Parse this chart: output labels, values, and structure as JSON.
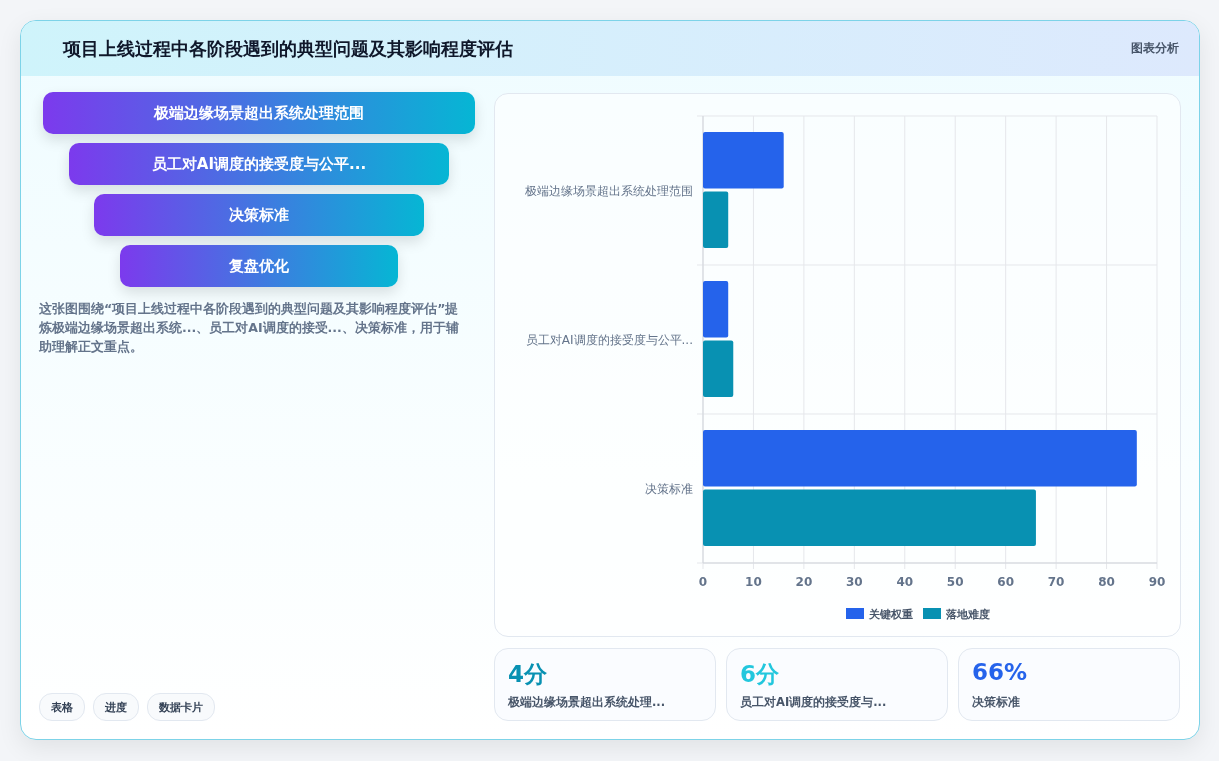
{
  "chart_data": [
    {
      "type": "other",
      "title": "项目上线过程中各阶段遇到的典型问题及其影响程度评估",
      "categories": [
        "极端边缘场景超出系统处理范围",
        "员工对AI调度的接受度与公平...",
        "决策标准",
        "复盘优化"
      ],
      "annotations": [
        "图表分析",
        "这张图围绕“项目上线过程中各阶段遇到的典型问题及其影响程度评估”提炼极端边缘场景超出系统...、员工对AI调度的接受...、决策标准，用于辅助理解正文重点。",
        "表格",
        "进度",
        "数据卡片"
      ]
    },
    {
      "type": "bar",
      "orientation": "horizontal",
      "categories": [
        "极端边缘场景超出系统处理范围",
        "员工对AI调度的接受度与公平...",
        "决策标准"
      ],
      "series": [
        {
          "name": "关键权重",
          "color": "#2563eb",
          "values": [
            16,
            5,
            86
          ]
        },
        {
          "name": "落地难度",
          "color": "#0891b2",
          "values": [
            5,
            6,
            66
          ]
        }
      ],
      "xlim": [
        0,
        90
      ],
      "xticks": [
        0,
        10,
        20,
        30,
        40,
        50,
        60,
        70,
        80,
        90
      ],
      "grid": true,
      "legend": "bottom"
    },
    {
      "type": "other",
      "annotations": [
        "4分",
        "极端边缘场景超出系统处理...",
        "6分",
        "员工对AI调度的接受度与...",
        "66%",
        "决策标准"
      ]
    }
  ]
}
